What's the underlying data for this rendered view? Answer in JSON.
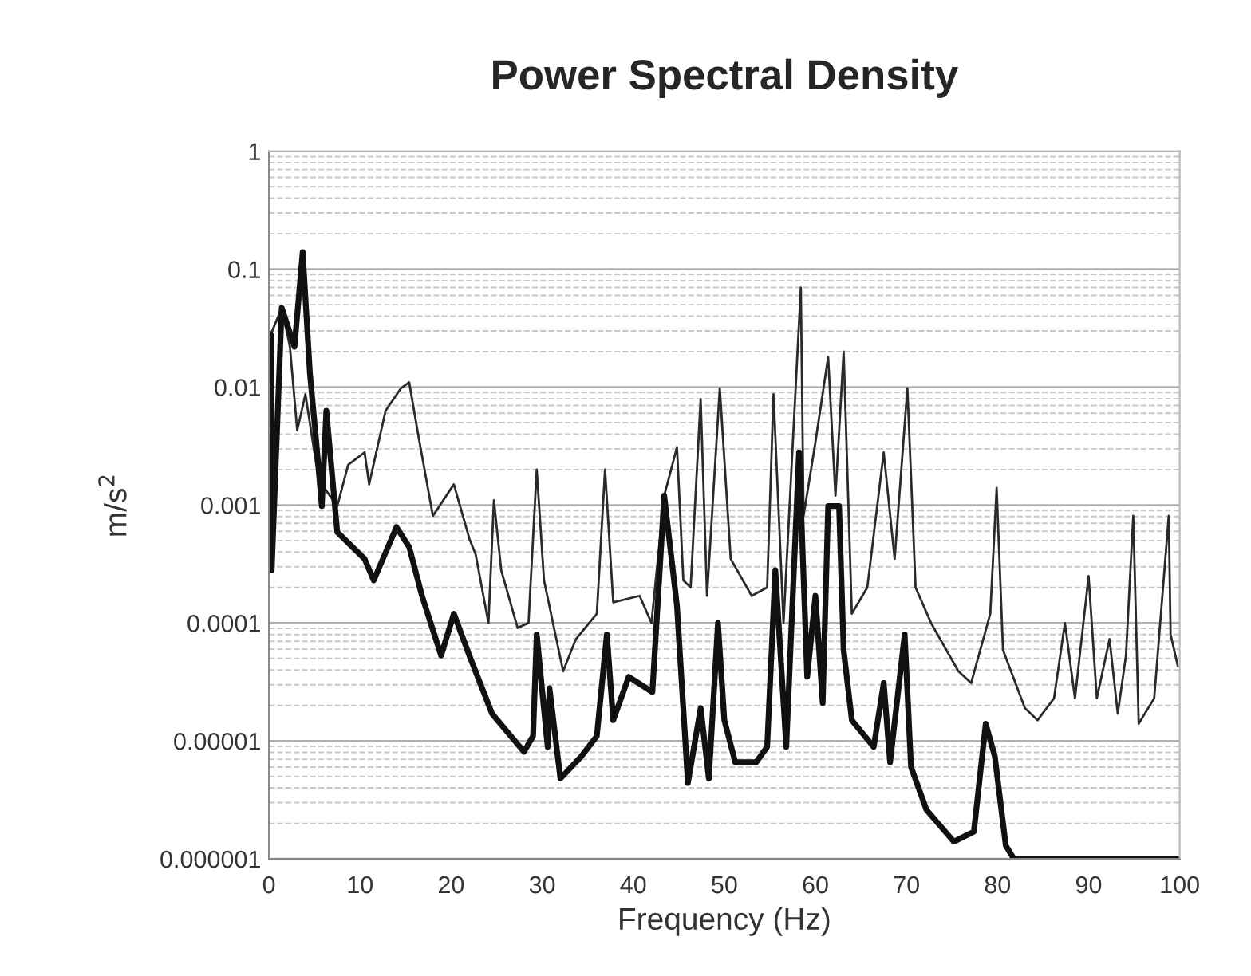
{
  "chart_data": {
    "type": "line",
    "title": "Power Spectral Density",
    "xlabel": "Frequency (Hz)",
    "ylabel": "m/s$^{2}$",
    "log": "y",
    "grid": "y",
    "marker": "none",
    "line_style": "solid",
    "xlim": [
      0,
      100
    ],
    "xticks": [
      0,
      10,
      20,
      30,
      40,
      50,
      60,
      70,
      80,
      90,
      100
    ],
    "ylim": [
      1e-06,
      1
    ],
    "yticks": [
      {
        "value": 1e-06,
        "label": "0.000001"
      },
      {
        "value": 1e-05,
        "label": "0.00001"
      },
      {
        "value": 0.0001,
        "label": "0.0001"
      },
      {
        "value": 0.001,
        "label": "0.001"
      },
      {
        "value": 0.01,
        "label": "0.01"
      },
      {
        "value": 0.1,
        "label": "0.1"
      },
      {
        "value": 1,
        "label": "1"
      }
    ],
    "series": [
      {
        "color": "#2a2a2a",
        "x": [
          0.2,
          1.4,
          2.3,
          3.1,
          4.0,
          5.2,
          5.8,
          7.5,
          8.7,
          10.5,
          11.0,
          12.8,
          14.5,
          15.4,
          16.3,
          18.0,
          20.3,
          22.0,
          22.7,
          24.1,
          24.7,
          25.5,
          27.3,
          28.5,
          29.4,
          30.2,
          32.3,
          33.7,
          36.0,
          36.9,
          37.8,
          40.7,
          42.0,
          43.4,
          44.8,
          45.5,
          46.3,
          47.4,
          48.1,
          49.5,
          50.7,
          53.0,
          54.7,
          55.4,
          56.5,
          58.4,
          58.7,
          60.0,
          61.4,
          62.2,
          63.1,
          64.0,
          65.7,
          67.5,
          68.7,
          70.1,
          71.0,
          72.7,
          75.7,
          77.1,
          79.2,
          79.9,
          80.6,
          83.0,
          84.4,
          86.2,
          87.4,
          88.5,
          90.0,
          90.9,
          92.3,
          93.2,
          94.1,
          94.9,
          95.5,
          97.2,
          98.8,
          99.0,
          99.8
        ],
        "values": [
          0.028,
          0.047,
          0.022,
          0.0043,
          0.0087,
          0.0022,
          0.0015,
          0.00098,
          0.0022,
          0.0028,
          0.0015,
          0.0063,
          0.0098,
          0.011,
          0.0043,
          0.00081,
          0.0015,
          0.00052,
          0.00038,
          0.0001,
          0.0011,
          0.00028,
          9.1e-05,
          0.0001,
          0.002,
          0.00023,
          3.9e-05,
          7.3e-05,
          0.00012,
          0.002,
          0.00015,
          0.00017,
          0.0001,
          0.0012,
          0.0031,
          0.00023,
          0.0002,
          0.0079,
          0.00017,
          0.0098,
          0.00035,
          0.00017,
          0.0002,
          0.0087,
          0.0001,
          0.07,
          0.00081,
          0.0034,
          0.018,
          0.0012,
          0.02,
          0.00012,
          0.0002,
          0.0028,
          0.00035,
          0.0098,
          0.0002,
          0.0001,
          3.9e-05,
          3.1e-05,
          0.00012,
          0.0014,
          5.9e-05,
          1.9e-05,
          1.5e-05,
          2.3e-05,
          0.0001,
          2.3e-05,
          0.00025,
          2.3e-05,
          7.3e-05,
          1.7e-05,
          5.3e-05,
          0.00081,
          1.4e-05,
          2.3e-05,
          0.00081,
          8e-05,
          4.3e-05
        ]
      },
      {
        "color": "#111111",
        "x": [
          0.2,
          0.3,
          1.4,
          2.8,
          3.7,
          4.5,
          5.2,
          5.8,
          6.3,
          7.5,
          10.5,
          11.5,
          14.0,
          15.4,
          16.8,
          18.9,
          20.3,
          22.0,
          24.5,
          28.0,
          29.0,
          29.4,
          30.6,
          30.8,
          32.0,
          34.3,
          36.0,
          37.1,
          37.8,
          39.5,
          42.1,
          43.4,
          44.8,
          46.0,
          47.4,
          48.3,
          49.3,
          50.0,
          51.2,
          53.5,
          54.7,
          55.6,
          56.8,
          58.2,
          59.1,
          60.0,
          60.8,
          61.4,
          62.6,
          63.1,
          64.0,
          66.4,
          67.5,
          68.2,
          69.8,
          70.5,
          72.2,
          75.2,
          77.4,
          78.7,
          79.7,
          80.9,
          81.8,
          100
        ],
        "values": [
          0.028,
          0.00028,
          0.047,
          0.022,
          0.14,
          0.013,
          0.0034,
          0.00098,
          0.0063,
          0.00059,
          0.00035,
          0.00023,
          0.00065,
          0.00044,
          0.00017,
          5.3e-05,
          0.00012,
          5.3e-05,
          1.7e-05,
          8.1e-06,
          1.1e-05,
          8e-05,
          8.9e-06,
          2.8e-05,
          4.8e-06,
          7.4e-06,
          1.1e-05,
          8e-05,
          1.5e-05,
          3.5e-05,
          2.6e-05,
          0.0012,
          0.00014,
          4.4e-06,
          1.9e-05,
          4.8e-06,
          0.0001,
          1.5e-05,
          6.6e-06,
          6.6e-06,
          8.9e-06,
          0.00028,
          8.9e-06,
          0.0028,
          3.5e-05,
          0.00017,
          2.1e-05,
          0.00098,
          0.00098,
          5.9e-05,
          1.5e-05,
          8.9e-06,
          3.1e-05,
          6.6e-06,
          8e-05,
          6e-06,
          2.6e-06,
          1.4e-06,
          1.7e-06,
          1.4e-05,
          7.4e-06,
          1.3e-06,
          1e-06,
          1e-06
        ]
      }
    ]
  }
}
